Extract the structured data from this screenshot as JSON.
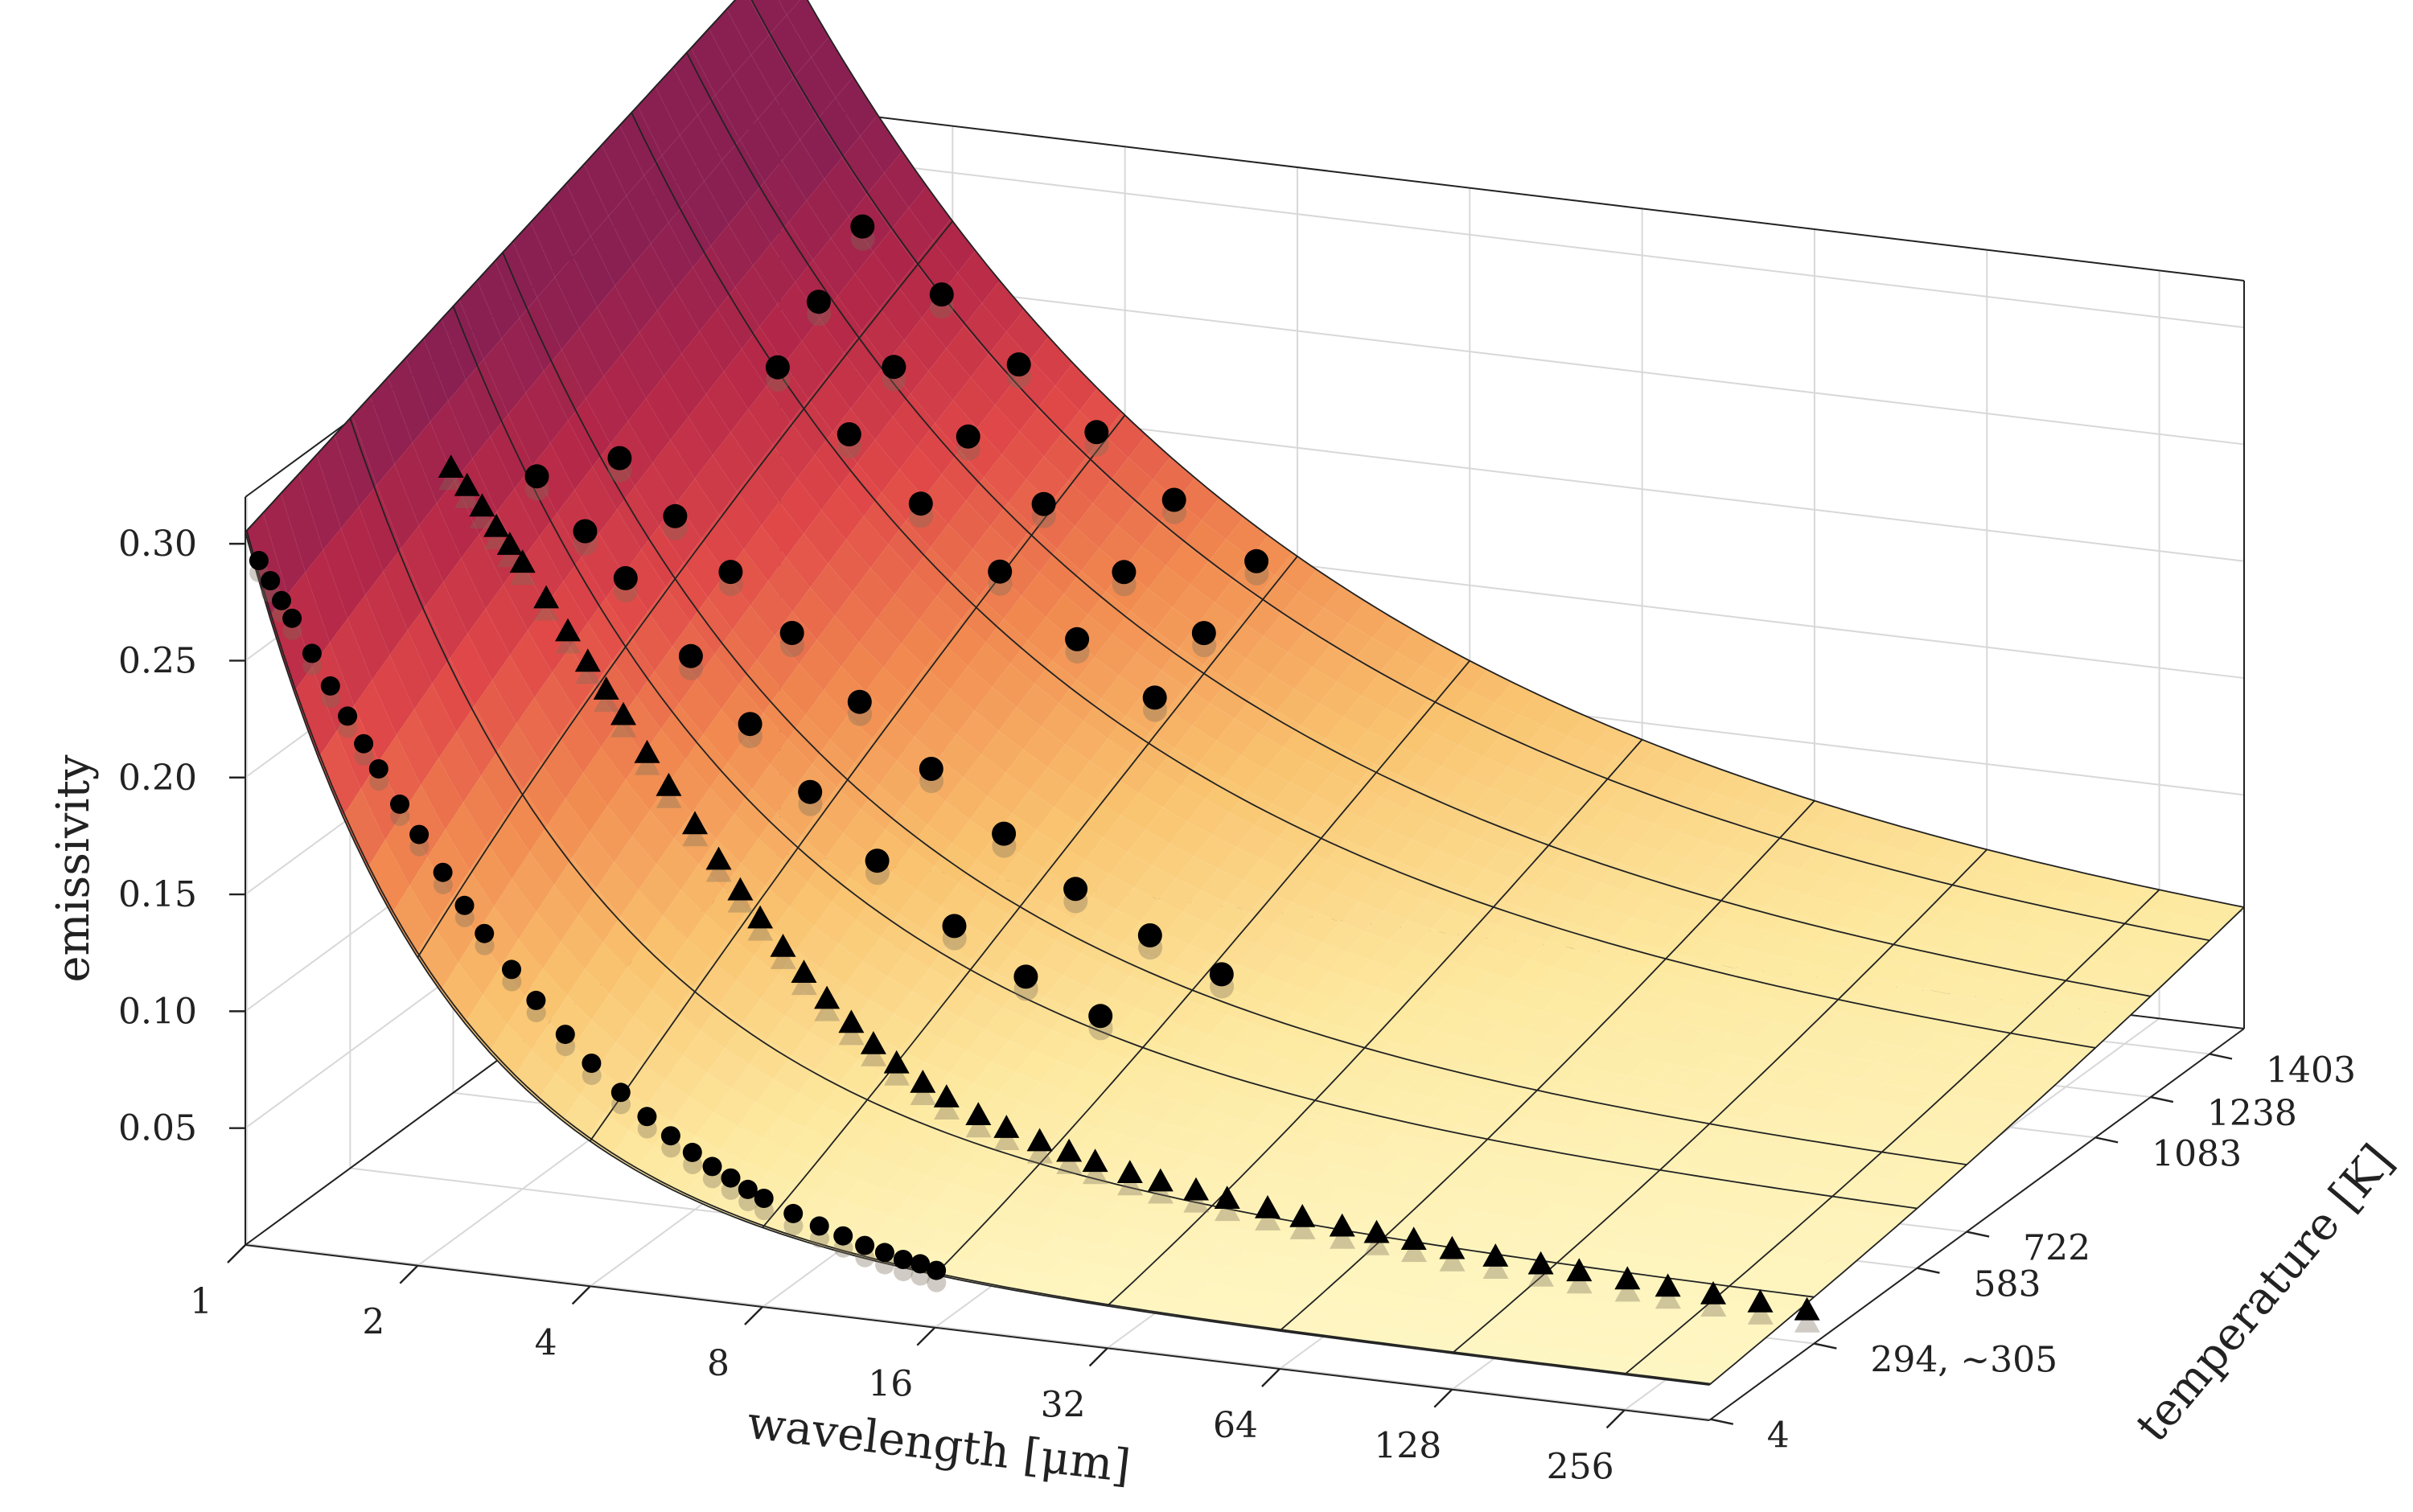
{
  "chart_data": {
    "type": "surface",
    "title": "",
    "xlabel": "wavelength [μm]",
    "ylabel": "temperature [K]",
    "zlabel": "emissivity",
    "x_scale": "log2",
    "x_ticks": [
      1,
      2,
      4,
      8,
      16,
      32,
      64,
      128,
      256
    ],
    "x_tick_labels": [
      "1",
      "2",
      "4",
      "8",
      "16",
      "32",
      "64",
      "128",
      "256"
    ],
    "y_ticks": [
      4,
      294,
      583,
      722,
      1083,
      1238,
      1403
    ],
    "y_tick_labels": [
      "4",
      "294, ∼305",
      "583",
      "722",
      "1083",
      "1238",
      "1403"
    ],
    "z_ticks": [
      0.05,
      0.1,
      0.15,
      0.2,
      0.25,
      0.3
    ],
    "z_tick_labels": [
      "0.05",
      "0.10",
      "0.15",
      "0.20",
      "0.25",
      "0.30"
    ],
    "xlim": [
      1,
      360
    ],
    "ylim": [
      0,
      1500
    ],
    "zlim": [
      0,
      0.32
    ],
    "grid": true,
    "colormap": [
      "#fffbd0",
      "#fde9a0",
      "#f9c36f",
      "#f18a50",
      "#e04848",
      "#b52848",
      "#8a2052"
    ],
    "series": [
      {
        "marker": "circle",
        "temperature": 4,
        "x": [
          1.05,
          1.1,
          1.15,
          1.2,
          1.3,
          1.4,
          1.5,
          1.6,
          1.7,
          1.85,
          2.0,
          2.2,
          2.4,
          2.6,
          2.9,
          3.2,
          3.6,
          4.0,
          4.5,
          5.0,
          5.5,
          6.0,
          6.5,
          7.0,
          7.5,
          8.0,
          9.0,
          10,
          11,
          12,
          13,
          14,
          15,
          16
        ],
        "y": [
          0.293,
          0.285,
          0.277,
          0.27,
          0.256,
          0.243,
          0.231,
          0.22,
          0.21,
          0.196,
          0.184,
          0.169,
          0.156,
          0.145,
          0.131,
          0.119,
          0.106,
          0.095,
          0.084,
          0.075,
          0.068,
          0.062,
          0.057,
          0.053,
          0.049,
          0.046,
          0.041,
          0.037,
          0.034,
          0.031,
          0.029,
          0.027,
          0.026,
          0.024
        ]
      },
      {
        "marker": "triangle",
        "temperature": 294,
        "x": [
          1.5,
          1.6,
          1.7,
          1.8,
          1.9,
          2.0,
          2.2,
          2.4,
          2.6,
          2.8,
          3.0,
          3.3,
          3.6,
          4.0,
          4.4,
          4.8,
          5.2,
          5.7,
          6.2,
          6.8,
          7.5,
          8.2,
          9.0,
          10,
          11,
          12.5,
          14,
          16,
          18,
          20,
          23,
          26,
          30,
          34,
          40,
          46,
          54,
          62,
          72,
          84,
          100,
          120,
          140,
          170,
          200,
          240,
          290,
          350
        ],
        "y": [
          0.305,
          0.298,
          0.29,
          0.282,
          0.275,
          0.268,
          0.254,
          0.241,
          0.229,
          0.218,
          0.208,
          0.193,
          0.18,
          0.165,
          0.151,
          0.139,
          0.128,
          0.117,
          0.107,
          0.097,
          0.088,
          0.08,
          0.073,
          0.066,
          0.061,
          0.055,
          0.051,
          0.047,
          0.044,
          0.041,
          0.038,
          0.036,
          0.034,
          0.032,
          0.03,
          0.028,
          0.026,
          0.025,
          0.024,
          0.022,
          0.021,
          0.02,
          0.019,
          0.018,
          0.017,
          0.016,
          0.015,
          0.014
        ]
      },
      {
        "marker": "circle",
        "temperature": 583,
        "x": [
          1.4,
          1.7,
          2.0,
          2.6,
          3.3,
          4.2,
          5.5,
          7.5,
          10,
          13.5
        ],
        "y": [
          0.268,
          0.247,
          0.229,
          0.199,
          0.173,
          0.147,
          0.121,
          0.097,
          0.079,
          0.066
        ]
      },
      {
        "marker": "circle",
        "temperature": 722,
        "x": [
          1.6,
          2.0,
          2.5,
          3.2,
          4.2,
          5.6,
          7.5,
          10,
          13.5,
          18
        ],
        "y": [
          0.262,
          0.24,
          0.219,
          0.196,
          0.17,
          0.145,
          0.121,
          0.101,
          0.085,
          0.072
        ]
      },
      {
        "marker": "circle",
        "temperature": 1083,
        "x": [
          1.8,
          2.4,
          3.2,
          4.4,
          6.0,
          8.2
        ],
        "y": [
          0.262,
          0.237,
          0.211,
          0.186,
          0.161,
          0.14
        ]
      },
      {
        "marker": "circle",
        "temperature": 1238,
        "x": [
          1.7,
          2.3,
          3.1,
          4.2,
          5.8,
          8.0
        ],
        "y": [
          0.272,
          0.248,
          0.222,
          0.197,
          0.172,
          0.15
        ]
      },
      {
        "marker": "circle",
        "temperature": 1403,
        "x": [
          1.6,
          2.2,
          3.0,
          4.1,
          5.6,
          7.8
        ],
        "y": [
          0.285,
          0.26,
          0.234,
          0.209,
          0.184,
          0.162
        ]
      }
    ]
  }
}
